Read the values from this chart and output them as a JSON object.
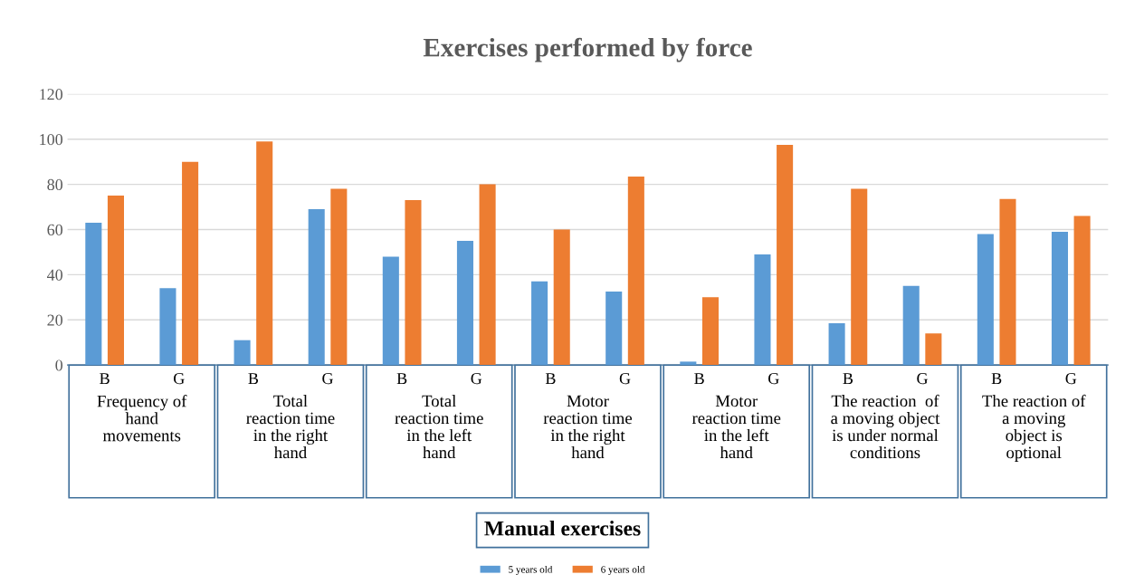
{
  "chart_data": {
    "type": "bar",
    "title": "Exercises performed by force",
    "categories": [
      "B",
      "G",
      "B",
      "G",
      "B",
      "G",
      "B",
      "G",
      "B",
      "G",
      "B",
      "G",
      "B",
      "G"
    ],
    "series": [
      {
        "name": "5 years old",
        "color": "#5b9bd5",
        "values": [
          63,
          34,
          11,
          69,
          48,
          55,
          37,
          32.5,
          1.5,
          49,
          18.5,
          35,
          58,
          59
        ]
      },
      {
        "name": "6 years old",
        "color": "#ed7d31",
        "values": [
          75,
          90,
          99,
          78,
          73,
          80,
          60,
          83.5,
          30,
          97.5,
          78,
          14,
          73.5,
          66
        ]
      }
    ],
    "annotations": [
      "Frequency of\nhand\nmovements",
      "Total\nreaction time\nin the right\nhand",
      "Total\nreaction time\nin the left\nhand",
      "Motor\nreaction time\nin the right\nhand",
      "Motor\nreaction time\nin the left\nhand",
      "The reaction  of\na moving object\nis under normal\nconditions",
      "The reaction of\na moving\nobject is\noptional",
      "Manual exercises"
    ],
    "ylim": [
      0,
      120
    ],
    "yticks": [
      0,
      20,
      40,
      60,
      80,
      100,
      120
    ],
    "grid": "y",
    "legend": "bottom"
  }
}
